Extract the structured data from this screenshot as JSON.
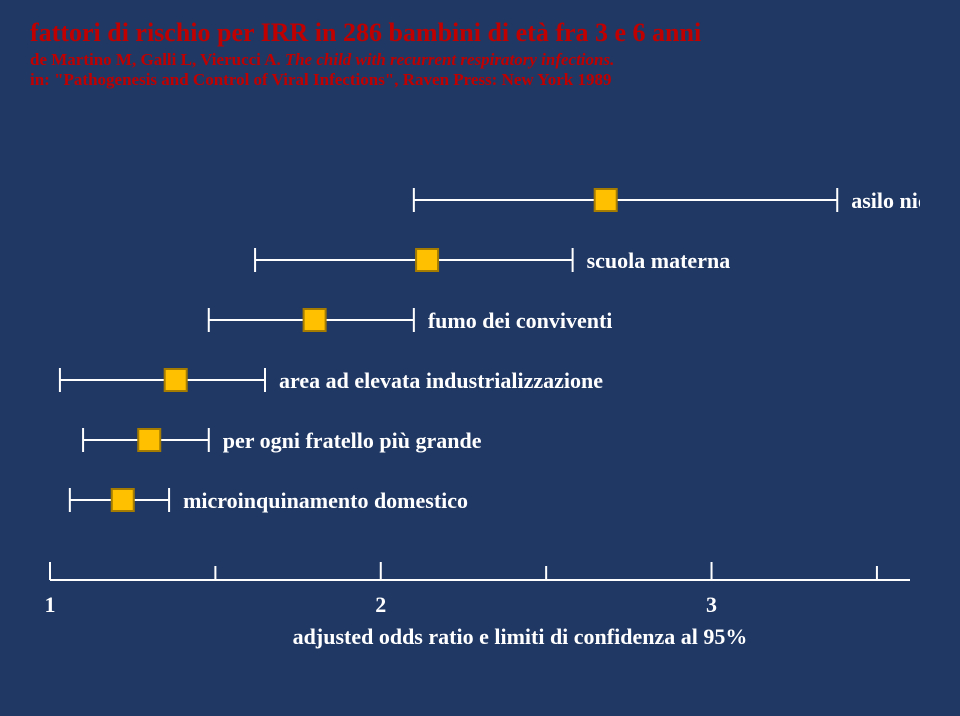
{
  "title": "fattori di rischio per IRR in 286 bambini di età fra 3 e 6 anni",
  "source_line1_plain": "de Martino M, Galli L, Vierucci A.",
  "source_line1_italic": "The child with recurrent respiratory infections.",
  "source_line2": "in: \"Pathogenesis and Control of Viral Infections\", Raven Press: New York 1989",
  "title_fontsize": 26,
  "source_fontsize": 17,
  "colors": {
    "background": "#203864",
    "text": "#ffffff",
    "title": "#c00000",
    "axis": "#ffffff",
    "marker_fill": "#ffc000",
    "marker_stroke": "#a67c00"
  },
  "chart": {
    "type": "forest-plot",
    "x_axis": {
      "min": 1,
      "max": 3.6,
      "ticks": [
        1,
        2,
        3
      ],
      "tick_labels": [
        "1",
        "2",
        "3"
      ],
      "caption": "adjusted odds ratio e limiti di confidenza al 95%",
      "tick_fontsize": 22,
      "caption_fontsize": 22
    },
    "marker": {
      "size": 22,
      "stroke_width": 2
    },
    "whisker": {
      "stroke_width": 2,
      "cap_height": 24
    },
    "label_fontsize": 22,
    "factors": [
      {
        "label": "asilo nido",
        "low": 2.1,
        "or": 2.68,
        "high": 3.38,
        "label_side": "right"
      },
      {
        "label": "scuola materna",
        "low": 1.62,
        "or": 2.14,
        "high": 2.58,
        "label_side": "right"
      },
      {
        "label": "fumo dei conviventi",
        "low": 1.48,
        "or": 1.8,
        "high": 2.1,
        "label_side": "right"
      },
      {
        "label": "area ad elevata industrializzazione",
        "low": 1.03,
        "or": 1.38,
        "high": 1.65,
        "label_side": "right"
      },
      {
        "label": "per ogni fratello più grande",
        "low": 1.1,
        "or": 1.3,
        "high": 1.48,
        "label_side": "right"
      },
      {
        "label": "microinquinamento domestico",
        "low": 1.06,
        "or": 1.22,
        "high": 1.36,
        "label_side": "right"
      }
    ]
  }
}
